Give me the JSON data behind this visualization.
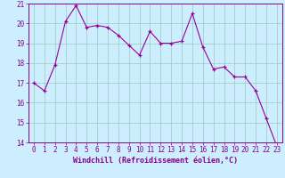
{
  "x": [
    0,
    1,
    2,
    3,
    4,
    5,
    6,
    7,
    8,
    9,
    10,
    11,
    12,
    13,
    14,
    15,
    16,
    17,
    18,
    19,
    20,
    21,
    22,
    23
  ],
  "y": [
    17.0,
    16.6,
    17.9,
    20.1,
    20.9,
    19.8,
    19.9,
    19.8,
    19.4,
    18.9,
    18.4,
    19.6,
    19.0,
    19.0,
    19.1,
    20.5,
    18.8,
    17.7,
    17.8,
    17.3,
    17.3,
    16.6,
    15.2,
    13.8
  ],
  "line_color": "#990099",
  "marker": "+",
  "marker_size": 3,
  "bg_color": "#cceeff",
  "grid_color": "#99ccbb",
  "xlabel": "Windchill (Refroidissement éolien,°C)",
  "ylim": [
    14,
    21
  ],
  "xlim_min": -0.5,
  "xlim_max": 23.5,
  "yticks": [
    14,
    15,
    16,
    17,
    18,
    19,
    20,
    21
  ],
  "xticks": [
    0,
    1,
    2,
    3,
    4,
    5,
    6,
    7,
    8,
    9,
    10,
    11,
    12,
    13,
    14,
    15,
    16,
    17,
    18,
    19,
    20,
    21,
    22,
    23
  ],
  "tick_color": "#880088",
  "label_color": "#880088",
  "spine_color": "#880088",
  "xlabel_fontsize": 6.0,
  "tick_fontsize": 5.5,
  "linewidth": 0.8,
  "marker_edge_width": 0.9
}
